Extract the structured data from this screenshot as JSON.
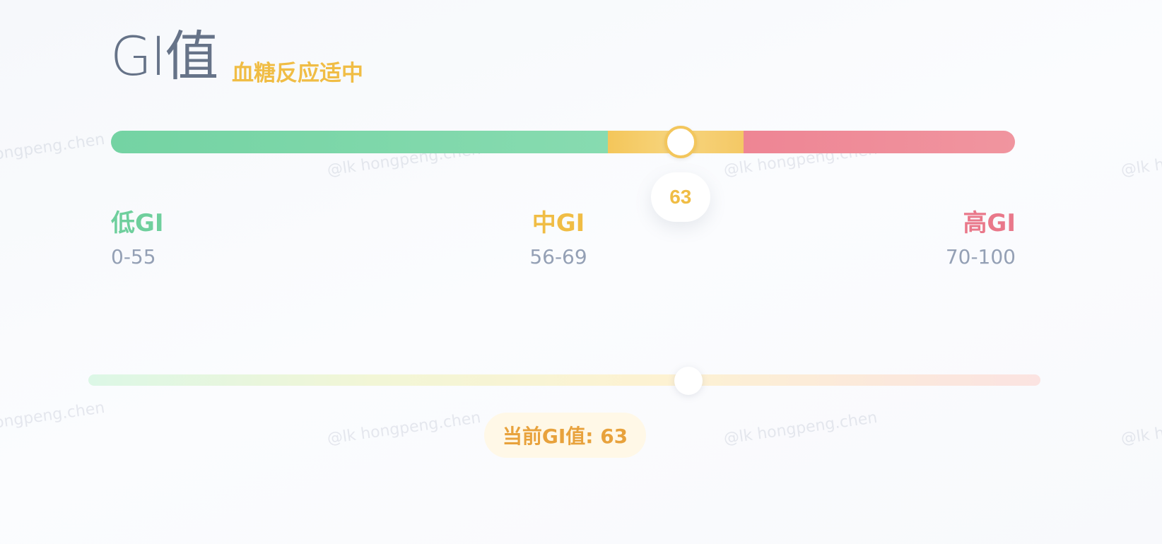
{
  "header": {
    "title": "GI值",
    "subtitle": "血糖反应适中"
  },
  "gi_scale": {
    "value": 63,
    "value_label": "63",
    "min": 0,
    "max": 100,
    "segments": [
      {
        "key": "low",
        "label": "低GI",
        "range": "0-55",
        "from": 0,
        "to": 55,
        "color": "#74d3a3"
      },
      {
        "key": "mid",
        "label": "中GI",
        "range": "56-69",
        "from": 55,
        "to": 70,
        "color": "#f4c65a"
      },
      {
        "key": "high",
        "label": "高GI",
        "range": "70-100",
        "from": 70,
        "to": 100,
        "color": "#ee8594"
      }
    ]
  },
  "slider": {
    "value": 63,
    "min": 0,
    "max": 100,
    "current_label": "当前GI值: 63"
  },
  "watermark": {
    "text": "@lk hongpeng.chen"
  },
  "colors": {
    "low": "#6fcf9d",
    "mid": "#f0bd45",
    "high": "#e9788a",
    "title": "#667388",
    "muted": "#94a0b5"
  }
}
